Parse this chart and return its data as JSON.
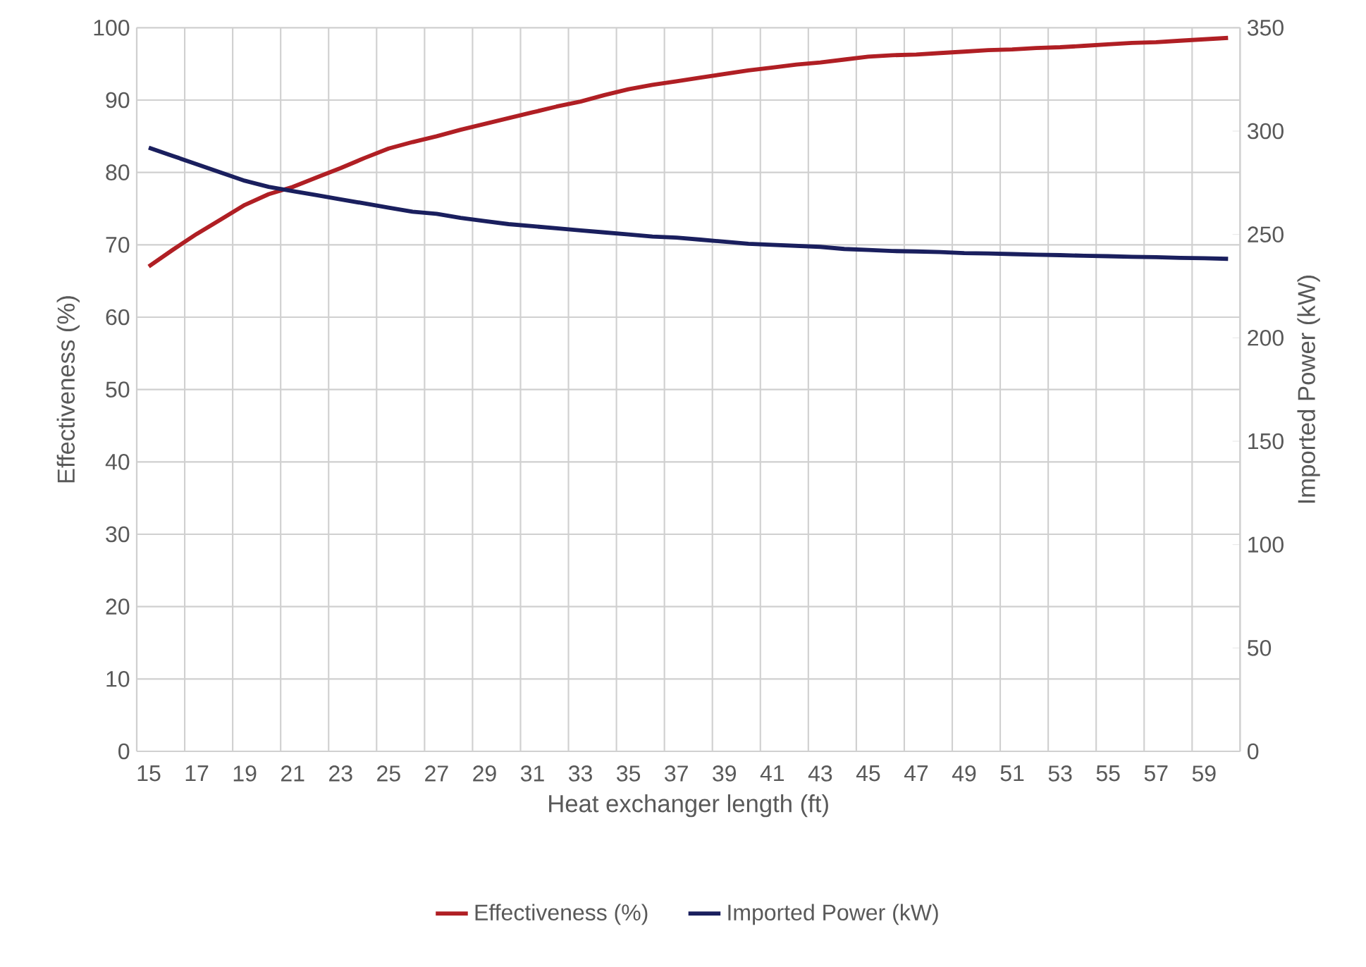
{
  "chart_data": {
    "type": "line",
    "xlabel": "Heat exchanger length (ft)",
    "ylabel": "Effectiveness (%)",
    "y2label": "Imported Power (kW)",
    "categories": [
      "15",
      null,
      "17",
      null,
      "19",
      null,
      "21",
      null,
      "23",
      null,
      "25",
      null,
      "27",
      null,
      "29",
      null,
      "31",
      null,
      "33",
      null,
      "35",
      null,
      "37",
      null,
      "39",
      null,
      "41",
      null,
      "43",
      null,
      "45",
      null,
      "47",
      null,
      "49",
      null,
      "51",
      null,
      "53",
      null,
      "55",
      null,
      "57",
      null,
      "59",
      null
    ],
    "ylim": [
      0,
      100
    ],
    "yticks": [
      0,
      10,
      20,
      30,
      40,
      50,
      60,
      70,
      80,
      90,
      100
    ],
    "y2lim": [
      0,
      350
    ],
    "y2ticks": [
      0,
      50,
      100,
      150,
      200,
      250,
      300,
      350
    ],
    "grid": true,
    "legend": "bottom",
    "marker": "none",
    "line_style": "solid",
    "series": [
      {
        "name": "Effectiveness  (%)",
        "color": "#b01f24",
        "values": [
          67,
          69.3,
          71.5,
          73.5,
          75.5,
          77,
          78,
          79.3,
          80.6,
          82,
          83.3,
          84.2,
          85,
          85.9,
          86.7,
          87.5,
          88.3,
          89.1,
          89.8,
          90.7,
          91.5,
          92.1,
          92.6,
          93.1,
          93.6,
          94.1,
          94.5,
          94.9,
          95.2,
          95.6,
          96,
          96.2,
          96.3,
          96.5,
          96.7,
          96.9,
          97,
          97.2,
          97.3,
          97.5,
          97.7,
          97.9,
          98,
          98.2,
          98.4,
          98.6
        ]
      },
      {
        "name": "Imported Power (kW)",
        "color": "#1a1f5e",
        "axis": "y2",
        "values": [
          292,
          288,
          284,
          280,
          276,
          273,
          271,
          269,
          267,
          265,
          263,
          261,
          260,
          258,
          256.5,
          255,
          254,
          253,
          252,
          251,
          250,
          249,
          248.5,
          247.5,
          246.5,
          245.5,
          245,
          244.5,
          244,
          243,
          242.5,
          242,
          241.8,
          241.5,
          241,
          240.8,
          240.5,
          240.2,
          240,
          239.7,
          239.5,
          239.2,
          239,
          238.7,
          238.5,
          238.2
        ]
      }
    ]
  }
}
